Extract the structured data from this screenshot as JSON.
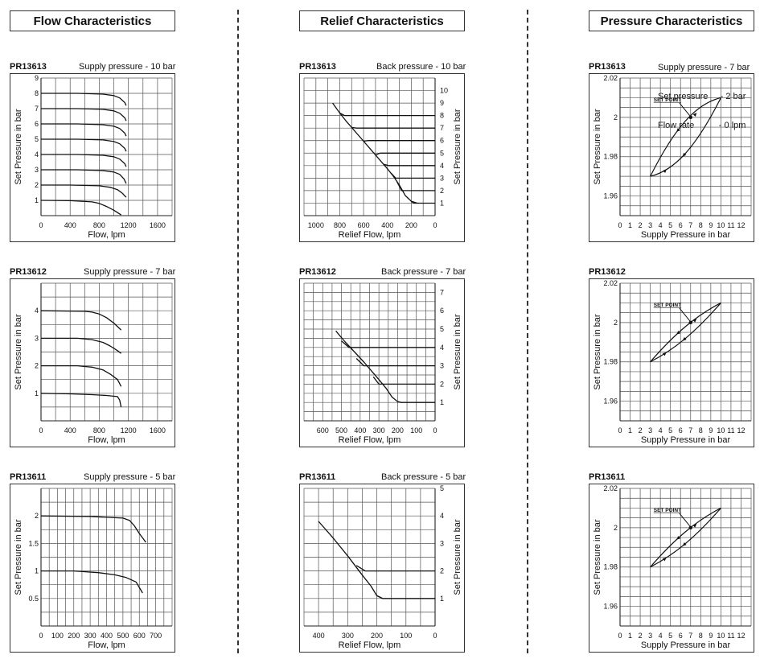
{
  "headers": {
    "flow": "Flow Characteristics",
    "relief": "Relief Characteristics",
    "pressure": "Pressure Characteristics"
  },
  "pressure_conditions": [
    "Supply pressure - 7 bar",
    "Set pressure     - 2 bar",
    "Flow rate          - 0 lpm"
  ],
  "chart_data": [
    {
      "id": "f1",
      "group": "flow",
      "type": "line",
      "model": "PR13613",
      "condition": "Supply pressure - 10 bar",
      "xlabel": "Flow, lpm",
      "ylabel": "Set Pressure in bar",
      "xlim": [
        0,
        1800
      ],
      "ylim": [
        0,
        9
      ],
      "xticks": [
        0,
        400,
        800,
        1200,
        1600
      ],
      "xtick_labels": [
        "0",
        "400",
        "800",
        "1200",
        "1600"
      ],
      "yticks": [
        1,
        2,
        3,
        4,
        5,
        6,
        7,
        8,
        9
      ],
      "ytick_labels": [
        "1",
        "2",
        "3",
        "4",
        "5",
        "6",
        "7",
        "8",
        "9"
      ],
      "xgrid": 200,
      "ygrid": 1,
      "yaxis": "left",
      "series": [
        {
          "x": [
            0,
            500,
            850,
            1000,
            1080,
            1150,
            1170
          ],
          "y": [
            8,
            8,
            7.95,
            7.85,
            7.7,
            7.4,
            7.2
          ]
        },
        {
          "x": [
            0,
            500,
            850,
            1000,
            1080,
            1150,
            1170
          ],
          "y": [
            7,
            7,
            6.95,
            6.85,
            6.7,
            6.4,
            6.2
          ]
        },
        {
          "x": [
            0,
            500,
            850,
            1000,
            1080,
            1150,
            1170
          ],
          "y": [
            6,
            6,
            5.95,
            5.85,
            5.7,
            5.4,
            5.2
          ]
        },
        {
          "x": [
            0,
            500,
            850,
            1000,
            1080,
            1150,
            1170
          ],
          "y": [
            5,
            5,
            4.95,
            4.85,
            4.7,
            4.4,
            4.2
          ]
        },
        {
          "x": [
            0,
            500,
            850,
            1000,
            1080,
            1150,
            1170
          ],
          "y": [
            4,
            4,
            3.95,
            3.85,
            3.7,
            3.4,
            3.2
          ]
        },
        {
          "x": [
            0,
            500,
            850,
            1000,
            1080,
            1140,
            1170
          ],
          "y": [
            3,
            3,
            2.95,
            2.85,
            2.7,
            2.4,
            2.1
          ]
        },
        {
          "x": [
            0,
            400,
            800,
            950,
            1050,
            1120,
            1170
          ],
          "y": [
            2,
            2,
            1.95,
            1.85,
            1.7,
            1.45,
            1.2
          ]
        },
        {
          "x": [
            0,
            400,
            700,
            800,
            900,
            1000,
            1100
          ],
          "y": [
            1,
            0.98,
            0.9,
            0.8,
            0.6,
            0.35,
            0.05
          ]
        }
      ]
    },
    {
      "id": "f2",
      "group": "flow",
      "type": "line",
      "model": "PR13612",
      "condition": "Supply pressure - 7 bar",
      "xlabel": "Flow, lpm",
      "ylabel": "Set Pressure in bar",
      "xlim": [
        0,
        1800
      ],
      "ylim": [
        0,
        5
      ],
      "xticks": [
        0,
        400,
        800,
        1200,
        1600
      ],
      "xtick_labels": [
        "0",
        "400",
        "800",
        "1200",
        "1600"
      ],
      "yticks": [
        1,
        2,
        3,
        4
      ],
      "ytick_labels": [
        "1",
        "2",
        "3",
        "4"
      ],
      "xgrid": 200,
      "ygrid": 0.5,
      "yaxis": "left",
      "series": [
        {
          "x": [
            0,
            600,
            700,
            800,
            900,
            1000,
            1100
          ],
          "y": [
            4,
            3.98,
            3.95,
            3.88,
            3.75,
            3.55,
            3.3
          ]
        },
        {
          "x": [
            0,
            500,
            700,
            850,
            950,
            1050,
            1100
          ],
          "y": [
            3,
            3,
            2.95,
            2.85,
            2.72,
            2.55,
            2.45
          ]
        },
        {
          "x": [
            0,
            500,
            700,
            850,
            950,
            1050,
            1100
          ],
          "y": [
            2,
            2,
            1.95,
            1.85,
            1.7,
            1.5,
            1.25
          ]
        },
        {
          "x": [
            0,
            400,
            700,
            900,
            1050,
            1080,
            1100
          ],
          "y": [
            1,
            0.98,
            0.95,
            0.92,
            0.88,
            0.75,
            0.5
          ]
        }
      ]
    },
    {
      "id": "f3",
      "group": "flow",
      "type": "line",
      "model": "PR13611",
      "condition": "Supply pressure - 5 bar",
      "xlabel": "Flow, lpm",
      "ylabel": "Set Pressure in bar",
      "xlim": [
        0,
        800
      ],
      "ylim": [
        0,
        2.5
      ],
      "xticks": [
        0,
        100,
        200,
        300,
        400,
        500,
        600,
        700
      ],
      "xtick_labels": [
        "0",
        "100",
        "200",
        "300",
        "400",
        "500",
        "600",
        "700"
      ],
      "yticks": [
        0.5,
        1,
        1.5,
        2
      ],
      "ytick_labels": [
        "0.5",
        "1",
        "1.5",
        "2"
      ],
      "xgrid": 50,
      "ygrid": 0.25,
      "yaxis": "left",
      "series": [
        {
          "x": [
            0,
            300,
            500,
            540,
            570,
            600,
            640
          ],
          "y": [
            2,
            1.99,
            1.96,
            1.92,
            1.82,
            1.68,
            1.52
          ]
        },
        {
          "x": [
            0,
            200,
            350,
            450,
            520,
            580,
            620
          ],
          "y": [
            1,
            1,
            0.97,
            0.93,
            0.88,
            0.8,
            0.6
          ]
        }
      ]
    },
    {
      "id": "r1",
      "group": "relief",
      "type": "line",
      "model": "PR13613",
      "condition": "Back pressure - 10 bar",
      "xlabel": "Relief Flow, lpm",
      "ylabel": "Set Pressure in bar",
      "xlim": [
        1100,
        0
      ],
      "ylim": [
        0,
        11
      ],
      "xticks": [
        1000,
        800,
        600,
        400,
        200,
        0
      ],
      "xtick_labels": [
        "1000",
        "800",
        "600",
        "400",
        "200",
        "0"
      ],
      "yticks": [
        1,
        2,
        3,
        4,
        5,
        6,
        7,
        8,
        9,
        10
      ],
      "ytick_labels": [
        "1",
        "2",
        "3",
        "4",
        "5",
        "6",
        "7",
        "8",
        "9",
        "10"
      ],
      "xgrid": 100,
      "ygrid": 1,
      "yaxis": "right",
      "series": [
        {
          "x": [
            860,
            800,
            750,
            700,
            650,
            600,
            550,
            500,
            450,
            400,
            350,
            300,
            250,
            200,
            150
          ],
          "y": [
            9.0,
            8.2,
            7.6,
            7.05,
            6.5,
            5.95,
            5.4,
            4.85,
            4.3,
            3.75,
            3.15,
            2.45,
            1.6,
            1.15,
            1.0
          ]
        },
        {
          "x": [
            800,
            760,
            0
          ],
          "y": [
            8.2,
            8,
            8
          ]
        },
        {
          "x": [
            700,
            660,
            0
          ],
          "y": [
            7.05,
            7,
            7
          ]
        },
        {
          "x": [
            600,
            560,
            0
          ],
          "y": [
            5.95,
            6,
            6
          ]
        },
        {
          "x": [
            500,
            460,
            0
          ],
          "y": [
            4.85,
            5,
            5
          ]
        },
        {
          "x": [
            430,
            390,
            0
          ],
          "y": [
            4.1,
            4,
            4
          ]
        },
        {
          "x": [
            370,
            330,
            0
          ],
          "y": [
            3.4,
            3,
            3
          ]
        },
        {
          "x": [
            320,
            280,
            0
          ],
          "y": [
            2.7,
            2,
            2
          ]
        },
        {
          "x": [
            200,
            180,
            0
          ],
          "y": [
            1.15,
            1,
            1
          ]
        }
      ]
    },
    {
      "id": "r2",
      "group": "relief",
      "type": "line",
      "model": "PR13612",
      "condition": "Back pressure - 7 bar",
      "xlabel": "Relief Flow, lpm",
      "ylabel": "Set Pressure in bar",
      "xlim": [
        700,
        0
      ],
      "ylim": [
        0,
        7.5
      ],
      "xticks": [
        600,
        500,
        400,
        300,
        200,
        100,
        0
      ],
      "xtick_labels": [
        "600",
        "500",
        "400",
        "300",
        "200",
        "100",
        "0"
      ],
      "yticks": [
        1,
        2,
        3,
        4,
        5,
        6,
        7
      ],
      "ytick_labels": [
        "1",
        "2",
        "3",
        "4",
        "5",
        "6",
        "7"
      ],
      "xgrid": 50,
      "ygrid": 0.5,
      "yaxis": "right",
      "series": [
        {
          "x": [
            530,
            480,
            430,
            380,
            330,
            300,
            260,
            230,
            200,
            180
          ],
          "y": [
            4.9,
            4.3,
            3.75,
            3.2,
            2.6,
            2.25,
            1.75,
            1.3,
            1.05,
            1.0
          ]
        },
        {
          "x": [
            500,
            460,
            0
          ],
          "y": [
            4.35,
            4,
            4
          ]
        },
        {
          "x": [
            420,
            380,
            0
          ],
          "y": [
            3.4,
            3,
            3
          ]
        },
        {
          "x": [
            330,
            300,
            0
          ],
          "y": [
            2.4,
            2,
            2
          ]
        },
        {
          "x": [
            200,
            180,
            0
          ],
          "y": [
            1.05,
            1,
            1
          ]
        }
      ]
    },
    {
      "id": "r3",
      "group": "relief",
      "type": "line",
      "model": "PR13611",
      "condition": "Back pressure - 5 bar",
      "xlabel": "Relief Flow, lpm",
      "ylabel": "Set Pressure in bar",
      "xlim": [
        450,
        0
      ],
      "ylim": [
        0,
        5
      ],
      "xticks": [
        400,
        300,
        200,
        100,
        0
      ],
      "xtick_labels": [
        "400",
        "300",
        "200",
        "100",
        "0"
      ],
      "yticks": [
        1,
        2,
        3,
        4,
        5
      ],
      "ytick_labels": [
        "1",
        "2",
        "3",
        "4",
        "5"
      ],
      "xgrid": 50,
      "ygrid": 0.5,
      "yaxis": "right",
      "series": [
        {
          "x": [
            400,
            350,
            300,
            250,
            220,
            200,
            180
          ],
          "y": [
            3.8,
            3.2,
            2.55,
            1.85,
            1.45,
            1.1,
            1.0
          ]
        },
        {
          "x": [
            270,
            240,
            0
          ],
          "y": [
            2.2,
            2,
            2
          ]
        },
        {
          "x": [
            200,
            180,
            0
          ],
          "y": [
            1.1,
            1,
            1
          ]
        }
      ]
    },
    {
      "id": "p1",
      "group": "pressure",
      "type": "line",
      "model": "PR13613",
      "annotation": "SET POINT",
      "xlabel": "Supply Pressure in bar",
      "ylabel": "Set Pressure in bar",
      "xlim": [
        0,
        13
      ],
      "ylim": [
        1.95,
        2.02
      ],
      "xticks": [
        0,
        1,
        2,
        3,
        4,
        5,
        6,
        7,
        8,
        9,
        10,
        11,
        12
      ],
      "xtick_labels": [
        "0",
        "1",
        "2",
        "3",
        "4",
        "5",
        "6",
        "7",
        "8",
        "9",
        "10",
        "11",
        "12"
      ],
      "yticks": [
        1.96,
        1.98,
        2,
        2.02
      ],
      "ytick_labels": [
        "1.96",
        "1.98",
        "2",
        "2.02"
      ],
      "xgrid": 1,
      "ygrid": 0.005,
      "yaxis": "left",
      "hysteresis": {
        "start": [
          3,
          1.97
        ],
        "end": [
          10,
          2.01
        ],
        "upper_offset": 0.0055,
        "lower_offset": -0.0055
      },
      "set_point": [
        7,
        2.0
      ],
      "series": []
    },
    {
      "id": "p2",
      "group": "pressure",
      "type": "line",
      "model": "PR13612",
      "annotation": "SET POINT",
      "xlabel": "Supply Pressure in bar",
      "ylabel": "Set Pressure in bar",
      "xlim": [
        0,
        13
      ],
      "ylim": [
        1.95,
        2.02
      ],
      "xticks": [
        0,
        1,
        2,
        3,
        4,
        5,
        6,
        7,
        8,
        9,
        10,
        11,
        12
      ],
      "xtick_labels": [
        "0",
        "1",
        "2",
        "3",
        "4",
        "5",
        "6",
        "7",
        "8",
        "9",
        "10",
        "11",
        "12"
      ],
      "yticks": [
        1.96,
        1.98,
        2,
        2.02
      ],
      "ytick_labels": [
        "1.96",
        "1.98",
        "2",
        "2.02"
      ],
      "xgrid": 1,
      "ygrid": 0.005,
      "yaxis": "left",
      "hysteresis": {
        "start": [
          3,
          1.98
        ],
        "end": [
          10,
          2.01
        ],
        "upper_offset": 0.002,
        "lower_offset": -0.002
      },
      "set_point": [
        7,
        2.0
      ],
      "series": []
    },
    {
      "id": "p3",
      "group": "pressure",
      "type": "line",
      "model": "PR13611",
      "annotation": "SET POINT",
      "xlabel": "Supply Pressure in bar",
      "ylabel": "Set Pressure in bar",
      "xlim": [
        0,
        13
      ],
      "ylim": [
        1.95,
        2.02
      ],
      "xticks": [
        0,
        1,
        2,
        3,
        4,
        5,
        6,
        7,
        8,
        9,
        10,
        11,
        12
      ],
      "xtick_labels": [
        "0",
        "1",
        "2",
        "3",
        "4",
        "5",
        "6",
        "7",
        "8",
        "9",
        "10",
        "11",
        "12"
      ],
      "yticks": [
        1.96,
        1.98,
        2,
        2.02
      ],
      "ytick_labels": [
        "1.96",
        "1.98",
        "2",
        "2.02"
      ],
      "xgrid": 1,
      "ygrid": 0.005,
      "yaxis": "left",
      "hysteresis": {
        "start": [
          3,
          1.98
        ],
        "end": [
          10,
          2.01
        ],
        "upper_offset": 0.002,
        "lower_offset": -0.002
      },
      "set_point": [
        7,
        2.0
      ],
      "series": []
    }
  ]
}
